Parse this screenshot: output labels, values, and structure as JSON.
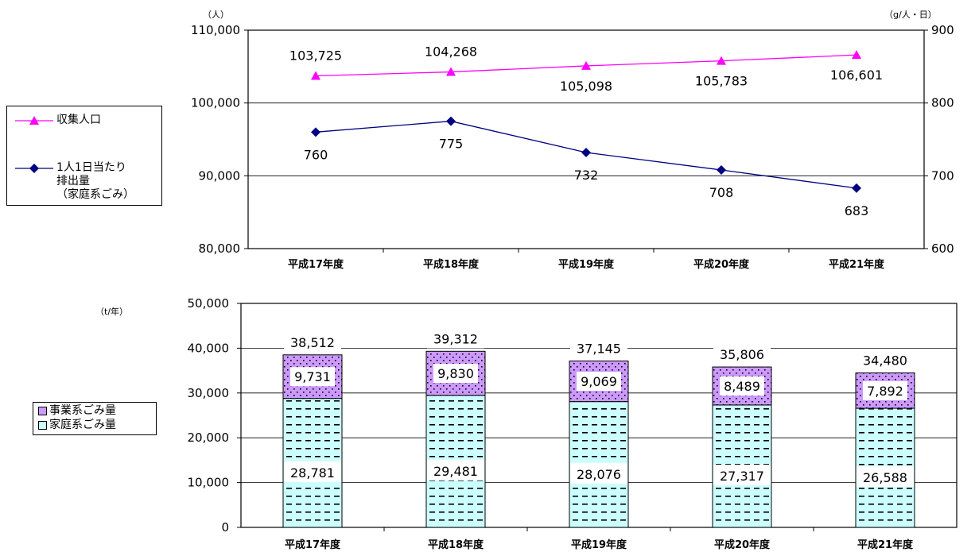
{
  "chart_data": [
    {
      "type": "line",
      "categories": [
        "平成17年度",
        "平成18年度",
        "平成19年度",
        "平成20年度",
        "平成21年度"
      ],
      "y_left": {
        "unit": "（人）",
        "min": 80000,
        "max": 110000,
        "ticks": [
          "80,000",
          "90,000",
          "100,000",
          "110,000"
        ]
      },
      "y_right": {
        "unit": "（g/人・日）",
        "min": 600,
        "max": 900,
        "ticks": [
          "600",
          "700",
          "800",
          "900"
        ]
      },
      "grid": true,
      "legend_position": "left",
      "series": [
        {
          "name": "収集人口",
          "axis": "left",
          "color": "#ff00ff",
          "marker": "triangle",
          "values": [
            103725,
            104268,
            105098,
            105783,
            106601
          ],
          "labels": [
            "103,725",
            "104,268",
            "105,098",
            "105,783",
            "106,601"
          ]
        },
        {
          "name": "1人1日当たり\n排出量\n（家庭系ごみ）",
          "axis": "right",
          "color": "#000080",
          "marker": "diamond",
          "values": [
            760,
            775,
            732,
            708,
            683
          ],
          "labels": [
            "760",
            "775",
            "732",
            "708",
            "683"
          ]
        }
      ]
    },
    {
      "type": "bar",
      "stacked": true,
      "categories": [
        "平成17年度",
        "平成18年度",
        "平成19年度",
        "平成20年度",
        "平成21年度"
      ],
      "y": {
        "unit": "（t/年）",
        "min": 0,
        "max": 50000,
        "ticks": [
          "0",
          "10,000",
          "20,000",
          "30,000",
          "40,000",
          "50,000"
        ]
      },
      "grid": true,
      "legend_position": "left",
      "series": [
        {
          "name": "家庭系ごみ量",
          "color": "#ccffff",
          "pattern": "dashes",
          "values": [
            28781,
            29481,
            28076,
            27317,
            26588
          ],
          "labels": [
            "28,781",
            "29,481",
            "28,076",
            "27,317",
            "26,588"
          ]
        },
        {
          "name": "事業系ごみ量",
          "color": "#cc99ff",
          "pattern": "dots",
          "values": [
            9731,
            9830,
            9069,
            8489,
            7892
          ],
          "labels": [
            "9,731",
            "9,830",
            "9,069",
            "8,489",
            "7,892"
          ]
        }
      ],
      "totals": [
        38512,
        39312,
        37145,
        35806,
        34480
      ],
      "total_labels": [
        "38,512",
        "39,312",
        "37,145",
        "35,806",
        "34,480"
      ]
    }
  ],
  "legend1": {
    "items": [
      {
        "label": "収集人口"
      },
      {
        "label": "1人1日当たり\n排出量\n（家庭系ごみ）"
      }
    ]
  },
  "legend2": {
    "items": [
      {
        "label": "事業系ごみ量"
      },
      {
        "label": "家庭系ごみ量"
      }
    ]
  }
}
